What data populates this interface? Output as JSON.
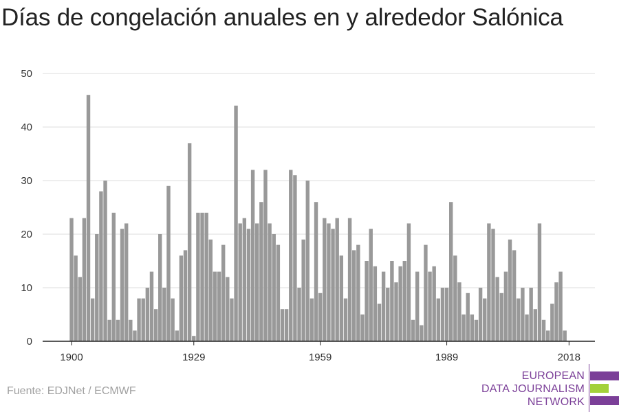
{
  "chart_data": {
    "type": "bar",
    "title": "Días de congelación anuales en y alrededor Salónica",
    "xlabel": "",
    "ylabel": "",
    "x_range": [
      1900,
      2018
    ],
    "ylim": [
      0,
      50
    ],
    "y_ticks": [
      0,
      10,
      20,
      30,
      40,
      50
    ],
    "x_ticks": [
      1900,
      1929,
      1959,
      1989,
      2018
    ],
    "grid": true,
    "bar_color": "#999999",
    "years": [
      1900,
      1901,
      1902,
      1903,
      1904,
      1905,
      1906,
      1907,
      1908,
      1909,
      1910,
      1911,
      1912,
      1913,
      1914,
      1915,
      1916,
      1917,
      1918,
      1919,
      1920,
      1921,
      1922,
      1923,
      1924,
      1925,
      1926,
      1927,
      1928,
      1929,
      1930,
      1931,
      1932,
      1933,
      1934,
      1935,
      1936,
      1937,
      1938,
      1939,
      1940,
      1941,
      1942,
      1943,
      1944,
      1945,
      1946,
      1947,
      1948,
      1949,
      1950,
      1951,
      1952,
      1953,
      1954,
      1955,
      1956,
      1957,
      1958,
      1959,
      1960,
      1961,
      1962,
      1963,
      1964,
      1965,
      1966,
      1967,
      1968,
      1969,
      1970,
      1971,
      1972,
      1973,
      1974,
      1975,
      1976,
      1977,
      1978,
      1979,
      1980,
      1981,
      1982,
      1983,
      1984,
      1985,
      1986,
      1987,
      1988,
      1989,
      1990,
      1991,
      1992,
      1993,
      1994,
      1995,
      1996,
      1997,
      1998,
      1999,
      2000,
      2001,
      2002,
      2003,
      2004,
      2005,
      2006,
      2007,
      2008,
      2009,
      2010,
      2011,
      2012,
      2013,
      2014,
      2015,
      2016,
      2017,
      2018
    ],
    "values": [
      23,
      16,
      12,
      23,
      46,
      8,
      20,
      28,
      30,
      4,
      24,
      4,
      21,
      22,
      4,
      2,
      8,
      8,
      10,
      13,
      6,
      20,
      10,
      29,
      8,
      2,
      16,
      17,
      37,
      1,
      24,
      24,
      24,
      19,
      13,
      13,
      18,
      12,
      8,
      44,
      22,
      23,
      21,
      32,
      22,
      26,
      32,
      22,
      20,
      18,
      6,
      6,
      32,
      31,
      10,
      19,
      30,
      8,
      26,
      9,
      23,
      22,
      21,
      23,
      16,
      8,
      23,
      17,
      18,
      5,
      15,
      21,
      14,
      7,
      13,
      10,
      15,
      11,
      14,
      15,
      22,
      4,
      13,
      3,
      18,
      13,
      14,
      8,
      10,
      10,
      26,
      16,
      11,
      5,
      9,
      5,
      4,
      10,
      8,
      22,
      21,
      12,
      9,
      13,
      19,
      17,
      8,
      10,
      5,
      10,
      6,
      22,
      4,
      2,
      7,
      11,
      13,
      2,
      0
    ]
  },
  "source": "Fuente: EDJNet / ECMWF",
  "logo": {
    "line1": "EUROPEAN",
    "line2": "DATA JOURNALISM",
    "line3": "NETWORK",
    "purple": "#7b3f98",
    "green": "#a3d13a"
  }
}
